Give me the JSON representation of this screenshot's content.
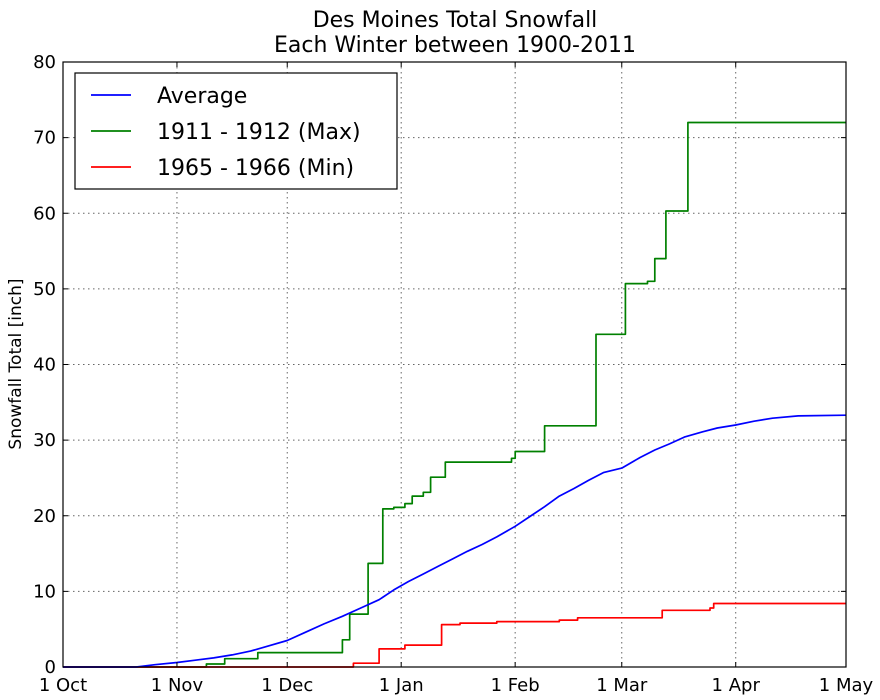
{
  "chart_data": {
    "type": "line",
    "title": [
      "Des Moines Total Snowfall",
      "Each Winter between 1900-2011"
    ],
    "xlabel": "",
    "ylabel": "Snowfall Total [inch]",
    "x_ticks": [
      {
        "label": "1 Oct",
        "day": 0
      },
      {
        "label": "1 Nov",
        "day": 31
      },
      {
        "label": "1 Dec",
        "day": 61
      },
      {
        "label": "1 Jan",
        "day": 92
      },
      {
        "label": "1 Feb",
        "day": 123
      },
      {
        "label": "1 Mar",
        "day": 152
      },
      {
        "label": "1 Apr",
        "day": 183
      },
      {
        "label": "1 May",
        "day": 213
      }
    ],
    "xlim": [
      0,
      213
    ],
    "ylim": [
      0,
      80
    ],
    "y_ticks": [
      0,
      10,
      20,
      30,
      40,
      50,
      60,
      70,
      80
    ],
    "grid": true,
    "legend_position": "top-left",
    "series": [
      {
        "name": "Average",
        "color": "#0000ff",
        "step": false,
        "points": [
          [
            0,
            0
          ],
          [
            20,
            0
          ],
          [
            25,
            0.3
          ],
          [
            31,
            0.6
          ],
          [
            36,
            0.9
          ],
          [
            41,
            1.2
          ],
          [
            46,
            1.6
          ],
          [
            51,
            2.1
          ],
          [
            56,
            2.8
          ],
          [
            61,
            3.5
          ],
          [
            66,
            4.6
          ],
          [
            71,
            5.7
          ],
          [
            76,
            6.7
          ],
          [
            81,
            7.8
          ],
          [
            86,
            8.9
          ],
          [
            90,
            10.2
          ],
          [
            94,
            11.3
          ],
          [
            98,
            12.3
          ],
          [
            102,
            13.3
          ],
          [
            106,
            14.3
          ],
          [
            110,
            15.3
          ],
          [
            114,
            16.2
          ],
          [
            118,
            17.2
          ],
          [
            123,
            18.6
          ],
          [
            127,
            19.9
          ],
          [
            131,
            21.2
          ],
          [
            135,
            22.6
          ],
          [
            139,
            23.6
          ],
          [
            143,
            24.7
          ],
          [
            147,
            25.7
          ],
          [
            152,
            26.3
          ],
          [
            157,
            27.7
          ],
          [
            161,
            28.7
          ],
          [
            165,
            29.5
          ],
          [
            169,
            30.4
          ],
          [
            174,
            31.1
          ],
          [
            178,
            31.6
          ],
          [
            183,
            32.0
          ],
          [
            188,
            32.5
          ],
          [
            193,
            32.9
          ],
          [
            200,
            33.2
          ],
          [
            213,
            33.3
          ]
        ]
      },
      {
        "name": "1911 - 1912 (Max)",
        "color": "#008000",
        "step": true,
        "points": [
          [
            0,
            0
          ],
          [
            31,
            0
          ],
          [
            39,
            0.4
          ],
          [
            44,
            1.1
          ],
          [
            53,
            1.9
          ],
          [
            76,
            3.6
          ],
          [
            78,
            7.0
          ],
          [
            83,
            13.7
          ],
          [
            87,
            20.9
          ],
          [
            90,
            21.1
          ],
          [
            93,
            21.6
          ],
          [
            95,
            22.6
          ],
          [
            98,
            23.1
          ],
          [
            100,
            25.1
          ],
          [
            104,
            27.1
          ],
          [
            122,
            27.6
          ],
          [
            123,
            28.5
          ],
          [
            131,
            31.9
          ],
          [
            145,
            44.0
          ],
          [
            151,
            44.0
          ],
          [
            153,
            50.7
          ],
          [
            159,
            51.0
          ],
          [
            161,
            54.0
          ],
          [
            164,
            60.3
          ],
          [
            168,
            60.3
          ],
          [
            170,
            72.0
          ],
          [
            213,
            72.0
          ]
        ]
      },
      {
        "name": "1965 - 1966 (Min)",
        "color": "#ff0000",
        "step": true,
        "points": [
          [
            0,
            0
          ],
          [
            78,
            0
          ],
          [
            79,
            0.5
          ],
          [
            86,
            2.4
          ],
          [
            93,
            2.9
          ],
          [
            103,
            5.6
          ],
          [
            108,
            5.8
          ],
          [
            118,
            6.0
          ],
          [
            135,
            6.2
          ],
          [
            140,
            6.5
          ],
          [
            163,
            7.5
          ],
          [
            176,
            7.8
          ],
          [
            177,
            8.4
          ],
          [
            213,
            8.4
          ]
        ]
      }
    ]
  }
}
